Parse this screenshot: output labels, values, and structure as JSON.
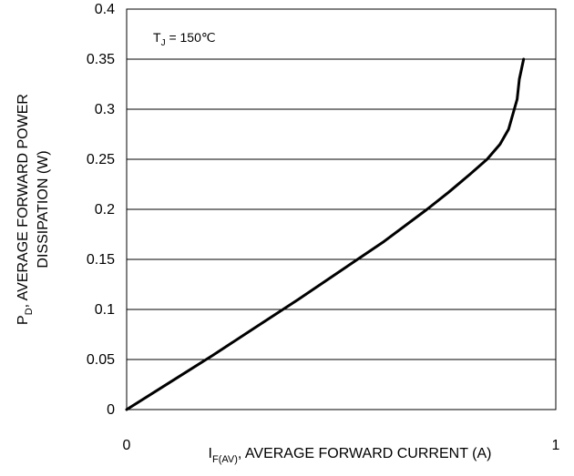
{
  "chart_data": {
    "type": "line",
    "annotation": {
      "main": "T",
      "sub": "J",
      "rest": " = 150℃"
    },
    "xlabel": {
      "main": "I",
      "sub": "F(AV)",
      "rest": ", AVERAGE FORWARD CURRENT (A)"
    },
    "ylabel": {
      "line1_main": "P",
      "line1_sub": "D",
      "line1_rest": ", AVERAGE FORWARD POWER",
      "line2": "DISSIPATION (W)"
    },
    "xlim": [
      0,
      1
    ],
    "ylim": [
      0,
      0.4
    ],
    "x_ticks": [
      {
        "value": 0,
        "label": "0"
      },
      {
        "value": 1,
        "label": "1"
      }
    ],
    "y_ticks": [
      {
        "value": 0,
        "label": "0"
      },
      {
        "value": 0.05,
        "label": "0.05"
      },
      {
        "value": 0.1,
        "label": "0.1"
      },
      {
        "value": 0.15,
        "label": "0.15"
      },
      {
        "value": 0.2,
        "label": "0.2"
      },
      {
        "value": 0.25,
        "label": "0.25"
      },
      {
        "value": 0.3,
        "label": "0.3"
      },
      {
        "value": 0.35,
        "label": "0.35"
      },
      {
        "value": 0.4,
        "label": "0.4"
      }
    ],
    "grid": "horizontal",
    "series": [
      {
        "color": "#000000",
        "points": [
          [
            0,
            0
          ],
          [
            0.1,
            0.027
          ],
          [
            0.2,
            0.054
          ],
          [
            0.3,
            0.082
          ],
          [
            0.4,
            0.11
          ],
          [
            0.5,
            0.139
          ],
          [
            0.6,
            0.168
          ],
          [
            0.7,
            0.2
          ],
          [
            0.75,
            0.217
          ],
          [
            0.8,
            0.235
          ],
          [
            0.84,
            0.25
          ],
          [
            0.87,
            0.265
          ],
          [
            0.89,
            0.28
          ],
          [
            0.9,
            0.295
          ],
          [
            0.91,
            0.31
          ],
          [
            0.915,
            0.33
          ],
          [
            0.925,
            0.35
          ]
        ]
      }
    ]
  }
}
